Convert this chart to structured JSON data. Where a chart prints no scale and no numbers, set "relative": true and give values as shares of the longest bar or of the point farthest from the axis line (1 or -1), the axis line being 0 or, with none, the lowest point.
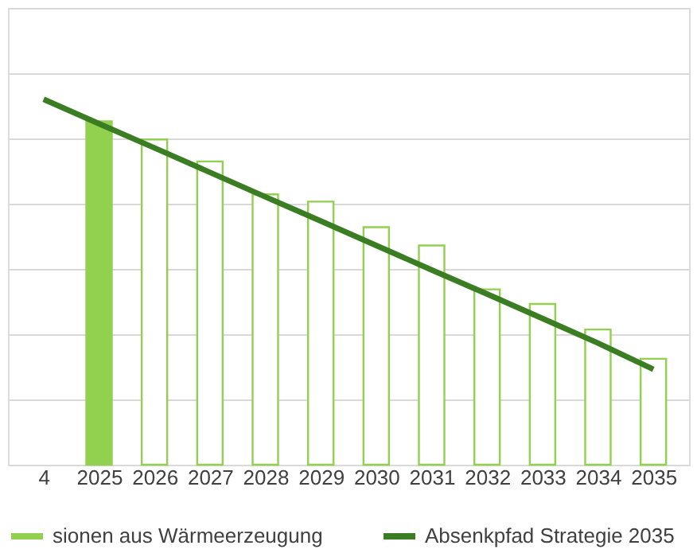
{
  "chart_data": {
    "type": "bar",
    "relative": true,
    "categories": [
      "4",
      "2025",
      "2026",
      "2027",
      "2028",
      "2029",
      "2030",
      "2031",
      "2032",
      "2033",
      "2034",
      "2035"
    ],
    "series": [
      {
        "name": "sionen aus Wärmeerzeugung",
        "color": "#92d050",
        "values": [
          null,
          0.94,
          null,
          null,
          null,
          null,
          null,
          null,
          null,
          null,
          null,
          null
        ]
      },
      {
        "color": "#92d050",
        "values": [
          null,
          null,
          0.89,
          0.83,
          0.74,
          0.72,
          0.65,
          0.6,
          0.48,
          0.44,
          0.37,
          0.29
        ]
      },
      {
        "name": "Absenkpfad Strategie 2035",
        "type": "line",
        "color": "#3a7d22",
        "values": [
          1,
          0.933,
          0.867,
          0.8,
          0.733,
          0.667,
          0.6,
          0.533,
          0.467,
          0.4,
          0.333,
          0.261
        ]
      }
    ],
    "grid": "y",
    "legend": "bottom"
  }
}
